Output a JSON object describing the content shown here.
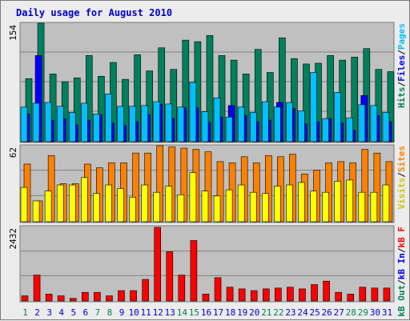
{
  "chart_data": {
    "type": "bar",
    "title": "Daily usage for August 2010",
    "categories": [
      "1",
      "2",
      "3",
      "4",
      "5",
      "6",
      "7",
      "8",
      "9",
      "10",
      "11",
      "12",
      "13",
      "14",
      "15",
      "16",
      "17",
      "18",
      "19",
      "20",
      "21",
      "22",
      "23",
      "24",
      "25",
      "26",
      "27",
      "28",
      "29",
      "30",
      "31"
    ],
    "weekend_days": [
      "1",
      "7",
      "8",
      "14",
      "15",
      "21",
      "22",
      "28",
      "29"
    ],
    "colors": {
      "background": "#c0c0c0",
      "grid": "#808080",
      "hits": "#00805c",
      "files": "#0000ff",
      "pages": "#00c0ff",
      "visits": "#ffff00",
      "sites": "#ff8000",
      "kb_f": "#ff0000",
      "kb_in": "#0000ff",
      "kb_out": "#00805c",
      "weekend_label": "#00805c",
      "weekday_label": "#0000cc",
      "title": "#0000cc"
    },
    "panels": [
      {
        "id": "hits-files-pages",
        "ymax_label": "154",
        "ymax": 154,
        "legend": [
          {
            "label": "Hits",
            "color": "#00805c"
          },
          {
            "label": "/",
            "color": "#000000"
          },
          {
            "label": "Files",
            "color": "#0000ff"
          },
          {
            "label": "/",
            "color": "#000000"
          },
          {
            "label": "Pages",
            "color": "#00c0ff"
          }
        ],
        "series": [
          {
            "name": "Hits",
            "color": "#00805c",
            "values": [
              82,
              154,
              88,
              78,
              83,
              112,
              85,
              103,
              81,
              113,
              92,
              122,
              94,
              132,
              130,
              138,
              112,
              106,
              88,
              120,
              90,
              135,
              108,
              101,
              102,
              112,
              106,
              110,
              121,
              94,
              91
            ]
          },
          {
            "name": "Files",
            "color": "#0000ff",
            "values": [
              36,
              112,
              28,
              30,
              22,
              28,
              35,
              24,
              21,
              26,
              35,
              49,
              30,
              44,
              44,
              25,
              32,
              47,
              34,
              26,
              28,
              51,
              43,
              23,
              26,
              30,
              24,
              15,
              60,
              34,
              26
            ]
          },
          {
            "name": "Pages",
            "color": "#00c0ff",
            "values": [
              45,
              50,
              51,
              46,
              38,
              50,
              36,
              62,
              46,
              46,
              47,
              52,
              49,
              45,
              77,
              39,
              57,
              32,
              45,
              38,
              52,
              45,
              51,
              40,
              90,
              30,
              64,
              31,
              48,
              47,
              38
            ]
          }
        ]
      },
      {
        "id": "visits-sites",
        "ymax_label": "62",
        "ymax": 62,
        "legend": [
          {
            "label": "Visits",
            "color": "#c8c800"
          },
          {
            "label": "/",
            "color": "#000000"
          },
          {
            "label": "Sites",
            "color": "#ff8000"
          }
        ],
        "series": [
          {
            "name": "Visits",
            "color": "#ffff00",
            "values": [
              28,
              17,
              25,
              30,
              30,
              36,
              23,
              30,
              27,
              20,
              30,
              24,
              29,
              22,
              40,
              25,
              21,
              26,
              30,
              24,
              23,
              29,
              30,
              32,
              25,
              24,
              33,
              34,
              24,
              24,
              30
            ]
          },
          {
            "name": "Sites",
            "color": "#ff8000",
            "values": [
              47,
              17,
              54,
              31,
              31,
              47,
              44,
              48,
              48,
              56,
              56,
              62,
              61,
              60,
              59,
              57,
              49,
              48,
              53,
              48,
              54,
              53,
              55,
              39,
              42,
              48,
              49,
              48,
              59,
              56,
              49
            ]
          }
        ]
      },
      {
        "id": "kbytes",
        "ymax_label": "2432",
        "ymax": 2432,
        "legend": [
          {
            "label": "kB Out",
            "color": "#00805c"
          },
          {
            "label": "/",
            "color": "#000000"
          },
          {
            "label": "kB In",
            "color": "#0000ff"
          },
          {
            "label": "/",
            "color": "#000000"
          },
          {
            "label": "kB F",
            "color": "#ff0000"
          }
        ],
        "series": [
          {
            "name": "kB F",
            "color": "#ff0000",
            "values": [
              171,
              856,
              228,
              171,
              86,
              285,
              285,
              171,
              343,
              343,
              713,
              2432,
              1627,
              856,
              1997,
              228,
              770,
              456,
              400,
              343,
              400,
              428,
              456,
              400,
              542,
              656,
              285,
              228,
              456,
              428,
              428
            ]
          },
          {
            "name": "kB In",
            "color": "#0000ff",
            "values": [
              0,
              0,
              0,
              0,
              0,
              0,
              0,
              0,
              0,
              0,
              0,
              0,
              0,
              0,
              0,
              0,
              0,
              0,
              0,
              0,
              0,
              0,
              0,
              0,
              0,
              0,
              0,
              0,
              0,
              0,
              0
            ]
          },
          {
            "name": "kB Out",
            "color": "#00805c",
            "values": [
              0,
              0,
              0,
              0,
              0,
              0,
              0,
              0,
              0,
              0,
              0,
              0,
              0,
              0,
              0,
              0,
              0,
              0,
              0,
              0,
              0,
              0,
              0,
              0,
              0,
              0,
              0,
              0,
              0,
              0,
              0
            ]
          }
        ]
      }
    ]
  }
}
